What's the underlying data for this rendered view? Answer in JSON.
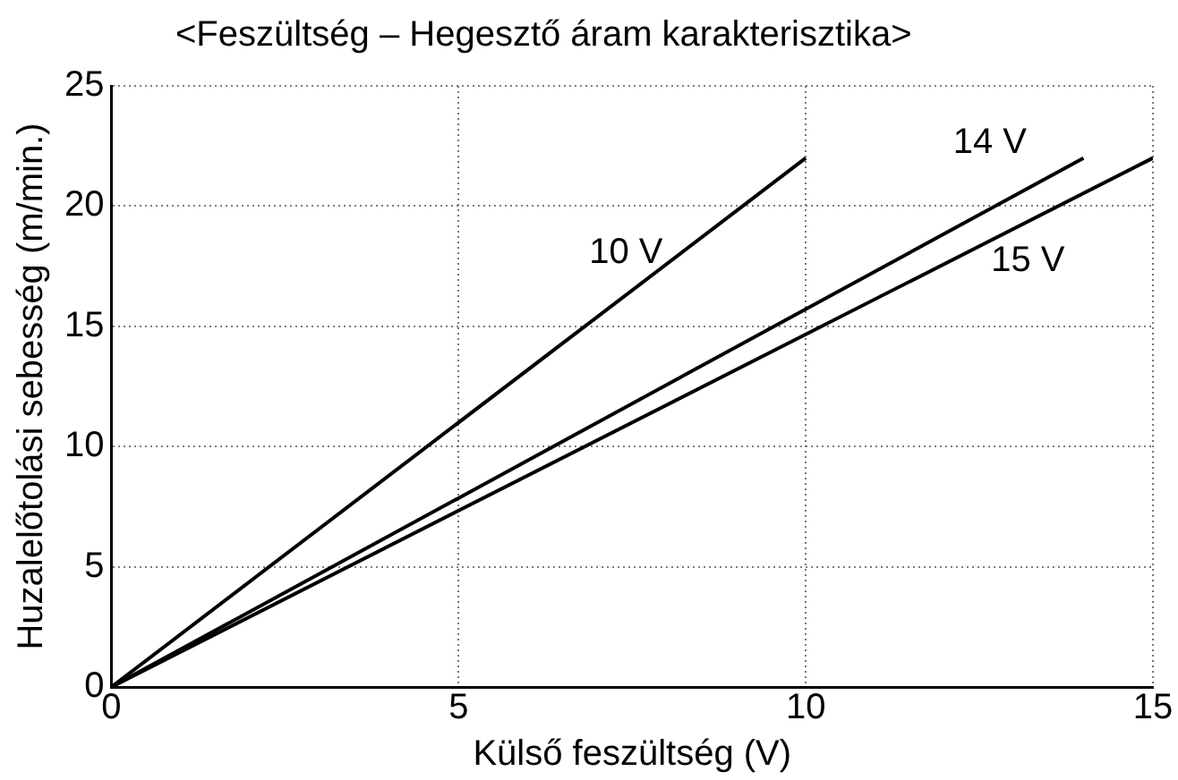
{
  "chart_data": {
    "type": "line",
    "title": "<Feszültség – Hegesztő áram karakterisztika>",
    "xlabel": "Külső feszültség (V)",
    "ylabel": "Huzalelőtolási sebesség (m/min.)",
    "series": [
      {
        "name": "10 V",
        "color": "#000000",
        "x": [
          0,
          10
        ],
        "values": [
          0,
          22
        ]
      },
      {
        "name": "14 V",
        "color": "#000000",
        "x": [
          0,
          14
        ],
        "values": [
          0,
          22
        ]
      },
      {
        "name": "15 V",
        "color": "#000000",
        "x": [
          0,
          15
        ],
        "values": [
          0,
          22
        ]
      }
    ],
    "xlim": [
      0,
      15
    ],
    "xticks": [
      0,
      5,
      10,
      15
    ],
    "ylim": [
      0,
      25
    ],
    "yticks": [
      0,
      5,
      10,
      15,
      20,
      25
    ],
    "grid": true,
    "legend": false,
    "marker": "none",
    "line_style": "solid"
  }
}
